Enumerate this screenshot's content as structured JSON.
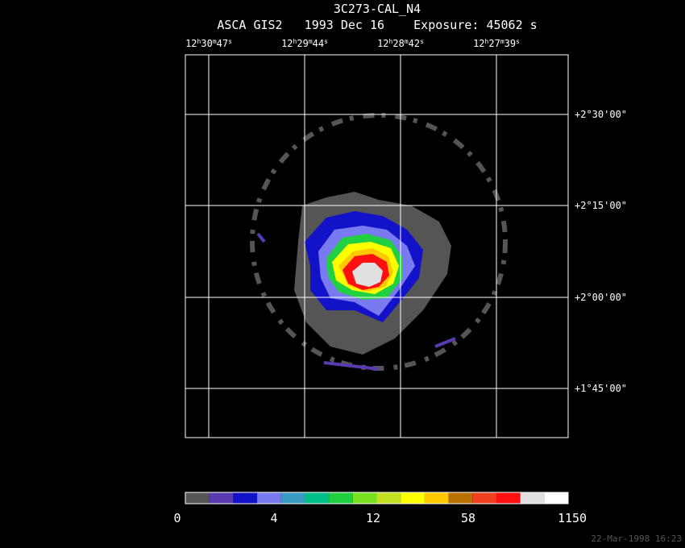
{
  "header": {
    "title": "3C273-CAL_N4",
    "subtitle": "ASCA GIS2   1993 Dec 16    Exposure: 45062 s"
  },
  "ra_labels": [
    [
      "12",
      "h",
      "30",
      "m",
      "47",
      "s"
    ],
    [
      "12",
      "h",
      "29",
      "m",
      "44",
      "s"
    ],
    [
      "12",
      "h",
      "28",
      "m",
      "42",
      "s"
    ],
    [
      "12",
      "h",
      "27",
      "m",
      "39",
      "s"
    ]
  ],
  "dec_labels": [
    "+2°30'00\"",
    "+2°15'00\"",
    "+2°00'00\"",
    "+1°45'00\""
  ],
  "colorbar": {
    "colors": [
      "#555555",
      "#5a3ab0",
      "#1212c8",
      "#7a7af0",
      "#3a9ac0",
      "#00c088",
      "#20d040",
      "#78e020",
      "#c0e020",
      "#ffff00",
      "#ffc800",
      "#b87000",
      "#f04020",
      "#ff1010",
      "#e0e0e0",
      "#ffffff"
    ],
    "labels": [
      0,
      4,
      12,
      58,
      1150
    ]
  },
  "timestamp": "22-Mar-1998 16:23"
}
